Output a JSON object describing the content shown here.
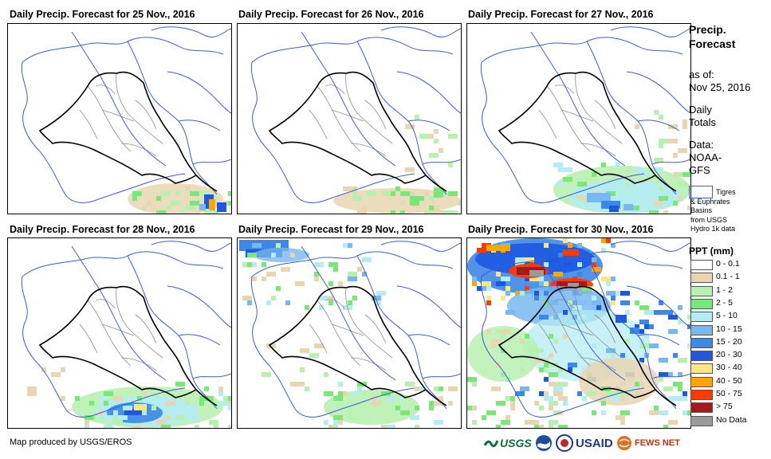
{
  "panels": [
    {
      "title": "Daily Precip. Forecast for 25 Nov., 2016"
    },
    {
      "title": "Daily Precip. Forecast for 26 Nov., 2016"
    },
    {
      "title": "Daily Precip. Forecast for 27 Nov., 2016"
    },
    {
      "title": "Daily Precip. Forecast for 28 Nov., 2016"
    },
    {
      "title": "Daily Precip. Forecast for 29 Nov., 2016"
    },
    {
      "title": "Daily Precip. Forecast for 30 Nov., 2016"
    }
  ],
  "sidebar": {
    "title_line1": "Precip.",
    "title_line2": "Forecast",
    "asof_label": "as of:",
    "asof_date": "Nov 25, 2016",
    "daily_line1": "Daily",
    "daily_line2": "Totals",
    "data_label": "Data:",
    "data_src1": "NOAA-",
    "data_src2": "GFS",
    "basin_line1": "Tigres",
    "basin_line2": "& Euphrates",
    "basin_line3": "Basins",
    "basin_line4": "from USGS",
    "basin_line5": "Hydro 1k data"
  },
  "legend": {
    "title": "PPT (mm)",
    "items": [
      {
        "label": "0 - 0.1",
        "color": "#ffffff"
      },
      {
        "label": "0.1 - 1",
        "color": "#e8d6b3"
      },
      {
        "label": "1 - 2",
        "color": "#b8f0b0"
      },
      {
        "label": "2 - 5",
        "color": "#78e878"
      },
      {
        "label": "5 - 10",
        "color": "#b4ecf4"
      },
      {
        "label": "10 - 15",
        "color": "#78b8f0"
      },
      {
        "label": "15 - 20",
        "color": "#3c88e8"
      },
      {
        "label": "20 - 30",
        "color": "#1c58e0"
      },
      {
        "label": "30 - 40",
        "color": "#ffe680"
      },
      {
        "label": "40 - 50",
        "color": "#ffa600"
      },
      {
        "label": "50 - 75",
        "color": "#ff3a00"
      },
      {
        "label": "> 75",
        "color": "#a01c1c"
      },
      {
        "label": "No Data",
        "color": "#9a9a9a"
      }
    ]
  },
  "footer": {
    "credit": "Map produced by USGS/EROS",
    "logo_usgs": "USGS",
    "logo_usaid": "USAID",
    "logo_fewsnet": "FEWS NET"
  },
  "colors": {
    "basin": "#3a5fcd",
    "border": "#000000",
    "provinces": "#8c8c8c"
  }
}
